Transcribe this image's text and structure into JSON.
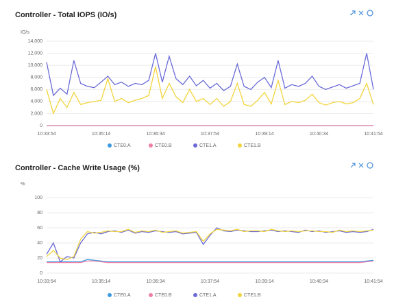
{
  "chart_data": [
    {
      "type": "line",
      "title": "Controller - Total IOPS (IO/s)",
      "y_unit": "IO/s",
      "categories": [
        "10:33:54",
        null,
        null,
        null,
        null,
        null,
        null,
        null,
        "10:35:14",
        null,
        null,
        null,
        null,
        null,
        null,
        null,
        "10:36:34",
        null,
        null,
        null,
        null,
        null,
        null,
        null,
        "10:37:54",
        null,
        null,
        null,
        null,
        null,
        null,
        null,
        "10:39:14",
        null,
        null,
        null,
        null,
        null,
        null,
        null,
        "10:40:34",
        null,
        null,
        null,
        null,
        null,
        null,
        null,
        "10:41:54"
      ],
      "ylim": [
        0,
        14000
      ],
      "yticks": [
        0,
        {
          "value": 2000,
          "label": "2,000"
        },
        {
          "value": 4000,
          "label": "4,000"
        },
        {
          "value": 6000,
          "label": "6,000"
        },
        {
          "value": 8000,
          "label": "8,000"
        },
        {
          "value": 10000,
          "label": "10,000"
        },
        {
          "value": 12000,
          "label": "12,000"
        },
        {
          "value": 14000,
          "label": "14,000"
        }
      ],
      "grid": true,
      "series": [
        {
          "name": "CTE0.A",
          "color": "#3b9ae1",
          "values": [
            0,
            0,
            0,
            0,
            0,
            0,
            0,
            0,
            0,
            0,
            0,
            0,
            0,
            0,
            0,
            0,
            0,
            0,
            0,
            0,
            0,
            0,
            0,
            0,
            0,
            0,
            0,
            0,
            0,
            0,
            0,
            0,
            0,
            0,
            0,
            0,
            0,
            0,
            0,
            0,
            0,
            0,
            0,
            0,
            0,
            0,
            0,
            0,
            0
          ]
        },
        {
          "name": "CTE0.B",
          "color": "#ef7fa6",
          "values": [
            0,
            0,
            0,
            0,
            0,
            0,
            0,
            0,
            0,
            0,
            0,
            0,
            0,
            0,
            0,
            0,
            0,
            0,
            0,
            0,
            0,
            0,
            0,
            0,
            0,
            0,
            0,
            0,
            0,
            0,
            0,
            0,
            0,
            0,
            0,
            0,
            0,
            0,
            0,
            0,
            0,
            0,
            0,
            0,
            0,
            0,
            0,
            0,
            0
          ]
        },
        {
          "name": "CTE1.A",
          "color": "#6a6ad8",
          "values": [
            10500,
            5000,
            6200,
            5200,
            10800,
            7000,
            6500,
            6300,
            7200,
            8200,
            6800,
            7200,
            6500,
            7000,
            6800,
            7500,
            12000,
            7200,
            11500,
            7800,
            6800,
            8200,
            6600,
            7500,
            6200,
            7000,
            5800,
            6500,
            10200,
            6500,
            6000,
            7200,
            8000,
            6300,
            10800,
            6200,
            6800,
            6500,
            7000,
            8200,
            6500,
            6000,
            6400,
            6800,
            6200,
            6600,
            7000,
            12000,
            6000
          ]
        },
        {
          "name": "CTE1.B",
          "color": "#f2d43c",
          "values": [
            6000,
            2000,
            4500,
            3000,
            5500,
            3500,
            3800,
            4000,
            4200,
            7800,
            4000,
            4500,
            3800,
            4200,
            4500,
            5000,
            9800,
            4500,
            7000,
            4800,
            3800,
            6000,
            4000,
            4500,
            3500,
            4500,
            3200,
            4000,
            7000,
            3500,
            3200,
            4200,
            5500,
            3600,
            7500,
            3500,
            4000,
            3800,
            4200,
            5200,
            3800,
            3400,
            3800,
            4000,
            3600,
            3800,
            4500,
            7000,
            3500
          ]
        }
      ]
    },
    {
      "type": "line",
      "title": "Controller - Cache Write Usage (%)",
      "y_unit": "%",
      "categories": [
        "10:33:54",
        null,
        null,
        null,
        null,
        null,
        null,
        null,
        "10:35:14",
        null,
        null,
        null,
        null,
        null,
        null,
        null,
        "10:36:34",
        null,
        null,
        null,
        null,
        null,
        null,
        null,
        "10:37:54",
        null,
        null,
        null,
        null,
        null,
        null,
        null,
        "10:39:14",
        null,
        null,
        null,
        null,
        null,
        null,
        null,
        "10:40:34",
        null,
        null,
        null,
        null,
        null,
        null,
        null,
        "10:41:54"
      ],
      "ylim": [
        0,
        100
      ],
      "yticks": [
        0,
        20,
        40,
        60,
        80,
        100
      ],
      "grid": true,
      "series": [
        {
          "name": "CTE0.A",
          "color": "#3b9ae1",
          "values": [
            15,
            15,
            15,
            15,
            15,
            15,
            18,
            17,
            16,
            15,
            15,
            15,
            15,
            15,
            15,
            15,
            15,
            15,
            15,
            15,
            15,
            15,
            15,
            15,
            15,
            15,
            15,
            15,
            15,
            15,
            15,
            15,
            15,
            15,
            15,
            15,
            15,
            15,
            15,
            15,
            15,
            15,
            15,
            15,
            15,
            15,
            15,
            16,
            17
          ]
        },
        {
          "name": "CTE0.B",
          "color": "#ef7fa6",
          "values": [
            14,
            14,
            14,
            14,
            14,
            14,
            16,
            16,
            15,
            14,
            14,
            14,
            14,
            14,
            14,
            14,
            14,
            14,
            14,
            14,
            14,
            14,
            14,
            14,
            14,
            14,
            14,
            14,
            14,
            14,
            14,
            14,
            14,
            14,
            14,
            14,
            14,
            14,
            14,
            14,
            14,
            14,
            14,
            14,
            14,
            14,
            14,
            15,
            16
          ]
        },
        {
          "name": "CTE1.A",
          "color": "#6a6ad8",
          "values": [
            25,
            40,
            15,
            22,
            20,
            40,
            52,
            54,
            52,
            55,
            56,
            54,
            57,
            53,
            55,
            54,
            56,
            55,
            54,
            55,
            52,
            53,
            54,
            38,
            50,
            60,
            56,
            55,
            57,
            56,
            55,
            55,
            56,
            57,
            55,
            56,
            55,
            54,
            57,
            55,
            56,
            54,
            55,
            56,
            54,
            55,
            54,
            55,
            58
          ]
        },
        {
          "name": "CTE1.B",
          "color": "#f2d43c",
          "values": [
            22,
            30,
            20,
            18,
            22,
            45,
            55,
            53,
            54,
            56,
            55,
            55,
            58,
            54,
            56,
            55,
            57,
            54,
            55,
            56,
            53,
            54,
            55,
            42,
            52,
            58,
            57,
            56,
            58,
            55,
            56,
            56,
            55,
            58,
            56,
            55,
            56,
            55,
            56,
            56,
            55,
            55,
            54,
            57,
            55,
            56,
            55,
            56,
            57
          ]
        }
      ]
    }
  ]
}
